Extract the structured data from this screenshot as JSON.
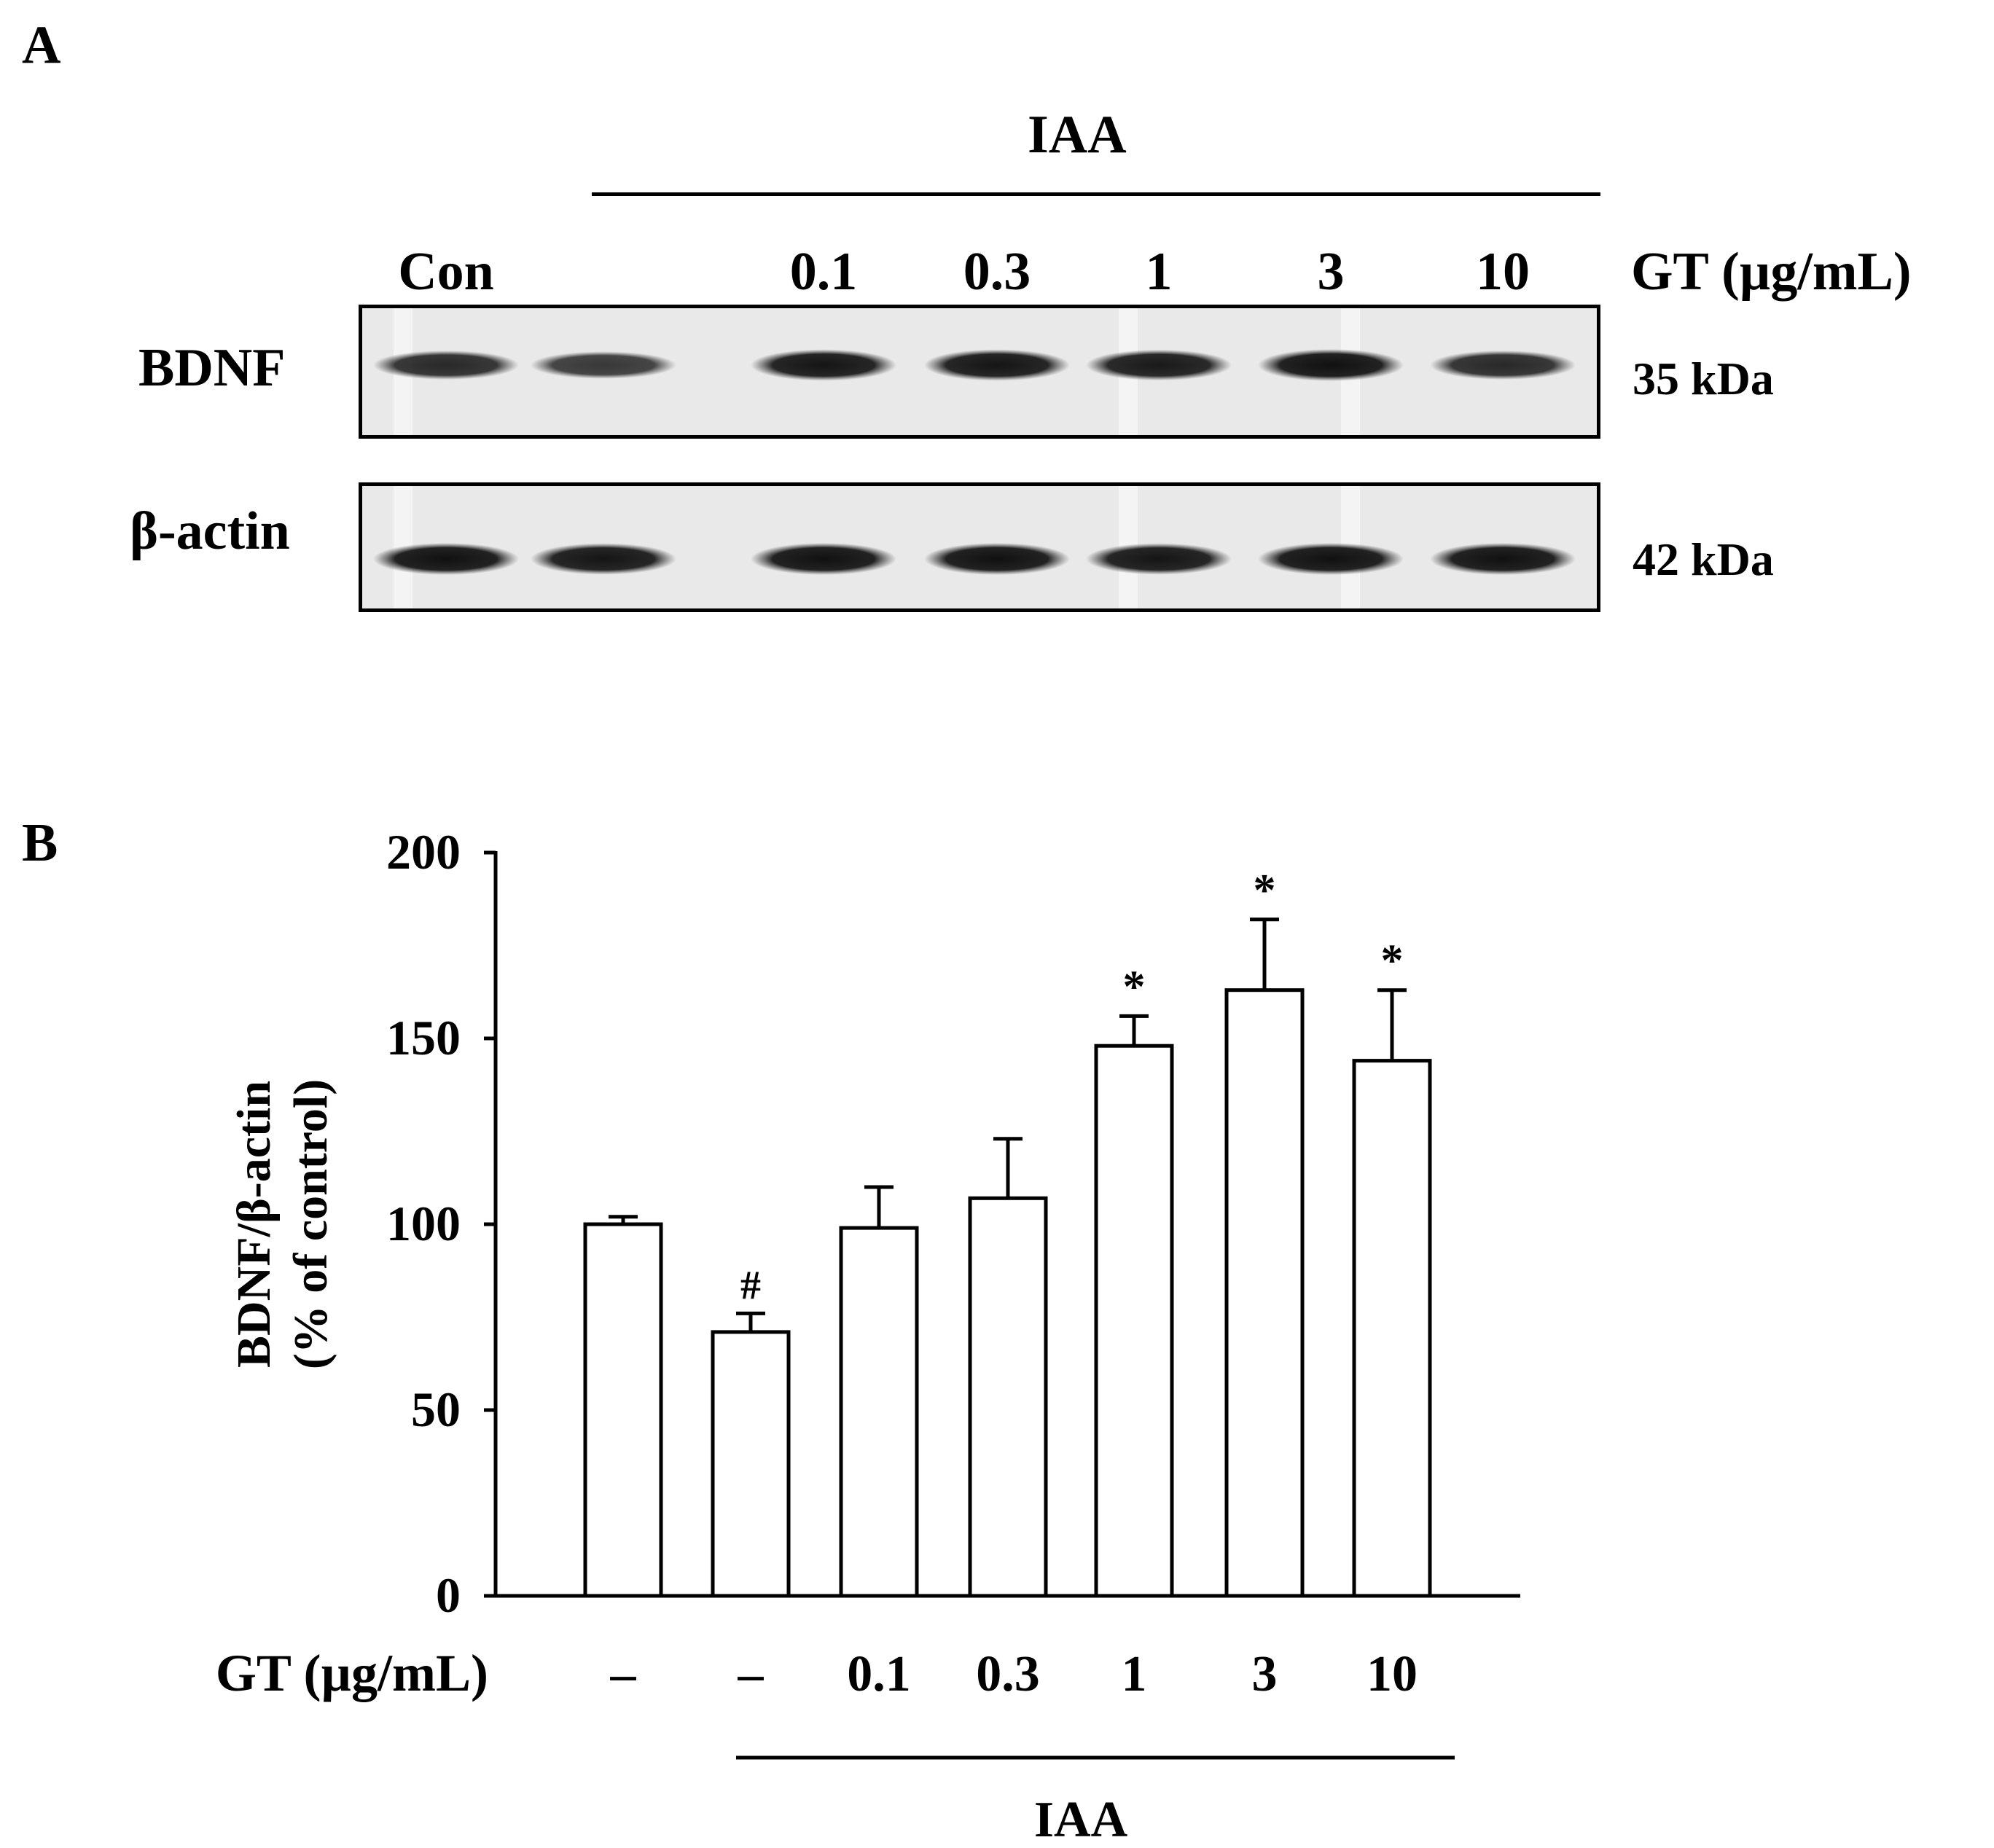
{
  "panel_a": {
    "label": "A",
    "treatment_label": "IAA",
    "lane_labels": [
      "Con",
      "",
      "0.1",
      "0.3",
      "1",
      "3",
      "10"
    ],
    "dose_label": "GT (µg/mL)",
    "blots": [
      {
        "name": "BDNF",
        "mw": "35 kDa",
        "band_intensity": [
          0.75,
          0.6,
          0.95,
          0.95,
          0.9,
          1.0,
          0.75
        ]
      },
      {
        "name": "β-actin",
        "mw": "42 kDa",
        "band_intensity": [
          1.0,
          0.95,
          1.0,
          1.0,
          0.95,
          1.0,
          1.0
        ]
      }
    ]
  },
  "panel_b": {
    "label": "B",
    "x_axis_label": "GT (µg/mL)",
    "treatment_label": "IAA"
  },
  "chart_data": {
    "type": "bar",
    "categories": [
      "–",
      "–",
      "0.1",
      "0.3",
      "1",
      "3",
      "10"
    ],
    "series": [
      {
        "name": "BDNF/β-actin",
        "values": [
          100,
          71,
          99,
          107,
          148,
          163,
          144
        ],
        "errors": [
          2,
          5,
          11,
          16,
          8,
          19,
          19
        ]
      }
    ],
    "annotations": [
      "",
      "#",
      "",
      "",
      "*",
      "*",
      "*"
    ],
    "ylabel_line1": "BDNF/β-actin",
    "ylabel_line2": "(% of control)",
    "ylim": [
      0,
      200
    ],
    "yticks": [
      "0",
      "50",
      "100",
      "150",
      "200"
    ],
    "xlabel": "GT (µg/mL)"
  }
}
